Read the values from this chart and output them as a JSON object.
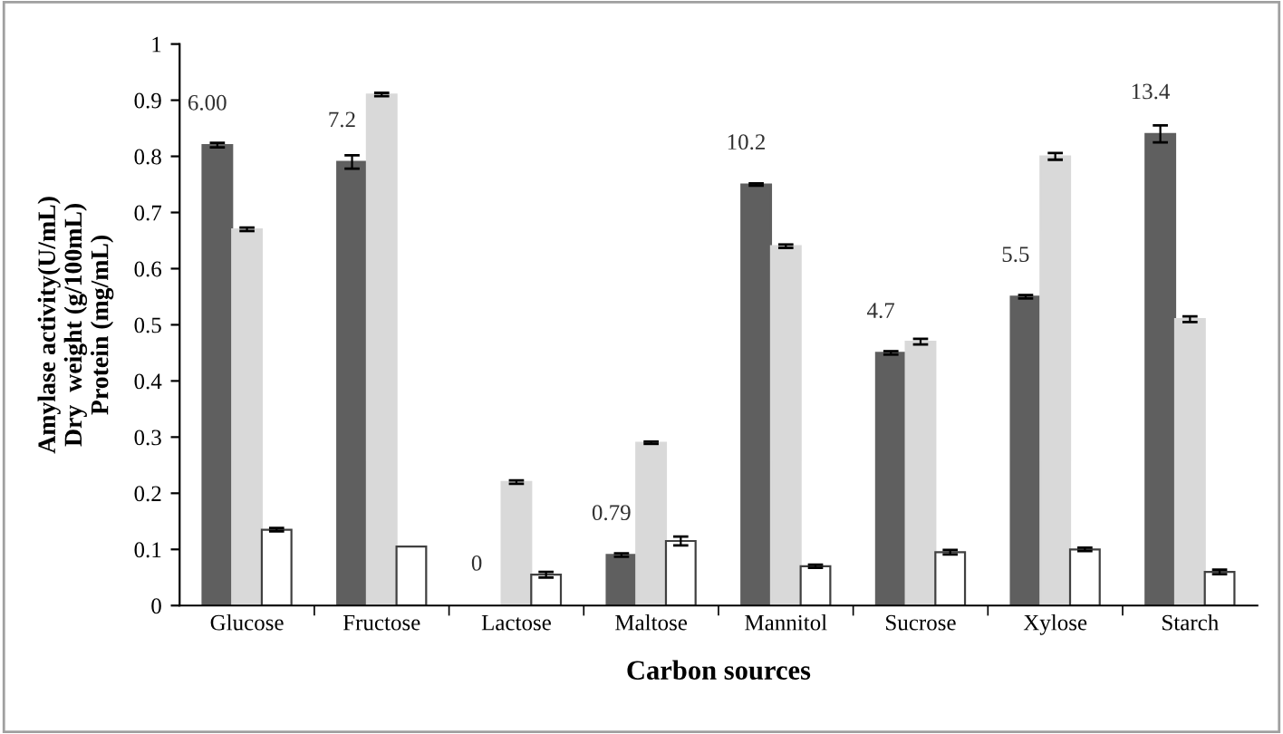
{
  "chart_data": {
    "type": "bar",
    "xlabel": "Carbon sources",
    "ylabel": "Amylase activity(U/mL)\nDry  weight (g/100mL)\nProtein (mg/mL)",
    "categories": [
      "Glucose",
      "Fructose",
      "Lactose",
      "Maltose",
      "Mannitol",
      "Sucrose",
      "Xylose",
      "Starch"
    ],
    "series": [
      {
        "color": "#5f5f5f",
        "values": [
          0.82,
          0.79,
          null,
          0.09,
          0.75,
          0.45,
          0.55,
          0.84
        ],
        "errors": [
          0.004,
          0.012,
          null,
          0.003,
          0.002,
          0.003,
          0.003,
          0.015
        ]
      },
      {
        "color": "#d9d9d9",
        "values": [
          0.67,
          0.91,
          0.22,
          0.29,
          0.64,
          0.47,
          0.8,
          0.51
        ],
        "errors": [
          0.003,
          0.003,
          0.003,
          0.002,
          0.003,
          0.005,
          0.006,
          0.005
        ]
      },
      {
        "color": "#ffffff",
        "values": [
          0.135,
          0.105,
          0.055,
          0.115,
          0.07,
          0.095,
          0.1,
          0.06
        ],
        "errors": [
          0.003,
          null,
          0.005,
          0.008,
          0.003,
          0.004,
          0.003,
          0.004
        ]
      }
    ],
    "annotations": [
      "6.00",
      "7.2",
      "0",
      "0.79",
      "10.2",
      "4.7",
      "5.5",
      "13.4"
    ],
    "ylim": [
      0,
      1
    ],
    "yticks": [
      0,
      0.1,
      0.2,
      0.3,
      0.4,
      0.5,
      0.6,
      0.7,
      0.8,
      0.9,
      1
    ],
    "grid": false,
    "legend": false
  }
}
